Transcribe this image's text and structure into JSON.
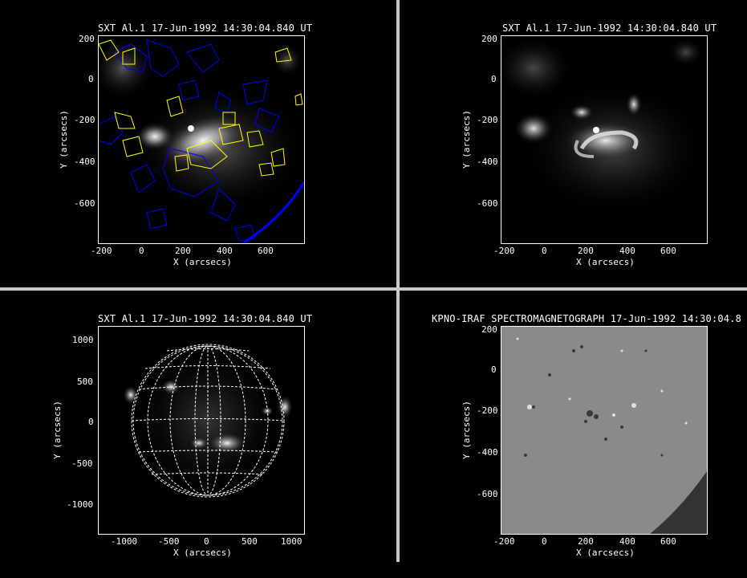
{
  "panels": {
    "top_left": {
      "title": "SXT Al.1 17-Jun-1992 14:30:04.840 UT",
      "xlabel": "X (arcsecs)",
      "ylabel": "Y (arcsecs)",
      "xticks": [
        "-200",
        "0",
        "200",
        "400",
        "600"
      ],
      "yticks": [
        "200",
        "0",
        "-200",
        "-400",
        "-600"
      ]
    },
    "top_right": {
      "title": "SXT Al.1 17-Jun-1992 14:30:04.840 UT",
      "xlabel": "X (arcsecs)",
      "ylabel": "Y (arcsecs)",
      "xticks": [
        "-200",
        "0",
        "200",
        "400",
        "600"
      ],
      "yticks": [
        "200",
        "0",
        "-200",
        "-400",
        "-600"
      ]
    },
    "bottom_left": {
      "title": "SXT Al.1 17-Jun-1992 14:30:04.840 UT",
      "xlabel": "X (arcsecs)",
      "ylabel": "Y (arcsecs)",
      "xticks": [
        "-1000",
        "-500",
        "0",
        "500",
        "1000"
      ],
      "yticks": [
        "1000",
        "500",
        "0",
        "-500",
        "-1000"
      ]
    },
    "bottom_right": {
      "title": "KPNO-IRAF SPECTROMAGNETOGRAPH 17-Jun-1992 14:30:04.8",
      "xlabel": "X (arcsecs)",
      "ylabel": "Y (arcsecs)",
      "xticks": [
        "-200",
        "0",
        "200",
        "400",
        "600"
      ],
      "yticks": [
        "200",
        "0",
        "-200",
        "-400",
        "-600"
      ]
    }
  },
  "colors": {
    "contour_positive": "#ffff00",
    "contour_negative": "#0000ff",
    "limb": "#0000ff",
    "grid": "#ffffff",
    "divider": "#c8c8c8"
  }
}
